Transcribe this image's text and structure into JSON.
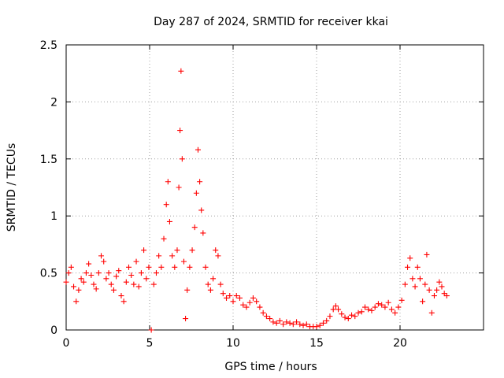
{
  "chart_data": {
    "type": "scatter",
    "title": "Day 287 of 2024, SRMTID for receiver kkai",
    "xlabel": "GPS time / hours",
    "ylabel": "SRMTID / TECUs",
    "xlim": [
      0,
      25
    ],
    "ylim": [
      0,
      2.5
    ],
    "xticks": [
      0,
      5,
      10,
      15,
      20
    ],
    "xtick_labels": [
      "0",
      "5",
      "10",
      "15",
      "20"
    ],
    "yticks": [
      0,
      0.5,
      1,
      1.5,
      2,
      2.5
    ],
    "ytick_labels": [
      "0",
      "0.5",
      "1",
      "1.5",
      "2",
      "2.5"
    ],
    "grid": true,
    "marker": "plus",
    "color": "#ff0000",
    "series": [
      {
        "name": "SRMTID",
        "points": [
          [
            0.0,
            0.42
          ],
          [
            0.15,
            0.5
          ],
          [
            0.3,
            0.55
          ],
          [
            0.45,
            0.38
          ],
          [
            0.6,
            0.25
          ],
          [
            0.75,
            0.35
          ],
          [
            0.9,
            0.45
          ],
          [
            1.05,
            0.42
          ],
          [
            1.2,
            0.5
          ],
          [
            1.35,
            0.58
          ],
          [
            1.5,
            0.48
          ],
          [
            1.65,
            0.4
          ],
          [
            1.8,
            0.36
          ],
          [
            1.95,
            0.5
          ],
          [
            2.1,
            0.65
          ],
          [
            2.25,
            0.6
          ],
          [
            2.4,
            0.45
          ],
          [
            2.55,
            0.5
          ],
          [
            2.7,
            0.4
          ],
          [
            2.85,
            0.35
          ],
          [
            3.0,
            0.47
          ],
          [
            3.15,
            0.52
          ],
          [
            3.3,
            0.3
          ],
          [
            3.45,
            0.25
          ],
          [
            3.6,
            0.42
          ],
          [
            3.75,
            0.55
          ],
          [
            3.9,
            0.48
          ],
          [
            4.05,
            0.4
          ],
          [
            4.2,
            0.6
          ],
          [
            4.35,
            0.38
          ],
          [
            4.5,
            0.5
          ],
          [
            4.65,
            0.7
          ],
          [
            4.8,
            0.45
          ],
          [
            4.95,
            0.55
          ],
          [
            5.1,
            0.0
          ],
          [
            5.25,
            0.4
          ],
          [
            5.4,
            0.5
          ],
          [
            5.55,
            0.65
          ],
          [
            5.7,
            0.55
          ],
          [
            5.85,
            0.8
          ],
          [
            6.0,
            1.1
          ],
          [
            6.1,
            1.3
          ],
          [
            6.2,
            0.95
          ],
          [
            6.35,
            0.65
          ],
          [
            6.5,
            0.55
          ],
          [
            6.65,
            0.7
          ],
          [
            6.75,
            1.25
          ],
          [
            6.82,
            1.75
          ],
          [
            6.88,
            2.27
          ],
          [
            6.95,
            1.5
          ],
          [
            7.05,
            0.6
          ],
          [
            7.15,
            0.1
          ],
          [
            7.25,
            0.35
          ],
          [
            7.4,
            0.55
          ],
          [
            7.55,
            0.7
          ],
          [
            7.7,
            0.9
          ],
          [
            7.8,
            1.2
          ],
          [
            7.9,
            1.58
          ],
          [
            8.0,
            1.3
          ],
          [
            8.1,
            1.05
          ],
          [
            8.2,
            0.85
          ],
          [
            8.35,
            0.55
          ],
          [
            8.5,
            0.4
          ],
          [
            8.65,
            0.35
          ],
          [
            8.8,
            0.45
          ],
          [
            8.95,
            0.7
          ],
          [
            9.1,
            0.65
          ],
          [
            9.25,
            0.4
          ],
          [
            9.4,
            0.32
          ],
          [
            9.6,
            0.28
          ],
          [
            9.8,
            0.3
          ],
          [
            10.0,
            0.25
          ],
          [
            10.2,
            0.3
          ],
          [
            10.4,
            0.28
          ],
          [
            10.6,
            0.22
          ],
          [
            10.8,
            0.2
          ],
          [
            11.0,
            0.24
          ],
          [
            11.2,
            0.28
          ],
          [
            11.4,
            0.25
          ],
          [
            11.6,
            0.2
          ],
          [
            11.8,
            0.15
          ],
          [
            12.0,
            0.12
          ],
          [
            12.2,
            0.1
          ],
          [
            12.4,
            0.07
          ],
          [
            12.6,
            0.06
          ],
          [
            12.8,
            0.08
          ],
          [
            13.0,
            0.05
          ],
          [
            13.2,
            0.07
          ],
          [
            13.4,
            0.06
          ],
          [
            13.6,
            0.05
          ],
          [
            13.8,
            0.07
          ],
          [
            14.0,
            0.05
          ],
          [
            14.2,
            0.04
          ],
          [
            14.4,
            0.05
          ],
          [
            14.6,
            0.03
          ],
          [
            14.8,
            0.03
          ],
          [
            15.0,
            0.03
          ],
          [
            15.2,
            0.04
          ],
          [
            15.4,
            0.06
          ],
          [
            15.6,
            0.08
          ],
          [
            15.8,
            0.12
          ],
          [
            16.0,
            0.18
          ],
          [
            16.15,
            0.21
          ],
          [
            16.3,
            0.18
          ],
          [
            16.5,
            0.14
          ],
          [
            16.7,
            0.11
          ],
          [
            16.9,
            0.1
          ],
          [
            17.1,
            0.13
          ],
          [
            17.3,
            0.12
          ],
          [
            17.5,
            0.15
          ],
          [
            17.7,
            0.16
          ],
          [
            17.9,
            0.2
          ],
          [
            18.1,
            0.18
          ],
          [
            18.3,
            0.17
          ],
          [
            18.5,
            0.2
          ],
          [
            18.7,
            0.23
          ],
          [
            18.9,
            0.22
          ],
          [
            19.1,
            0.2
          ],
          [
            19.3,
            0.24
          ],
          [
            19.5,
            0.18
          ],
          [
            19.7,
            0.15
          ],
          [
            19.9,
            0.2
          ],
          [
            20.1,
            0.26
          ],
          [
            20.3,
            0.4
          ],
          [
            20.45,
            0.55
          ],
          [
            20.6,
            0.63
          ],
          [
            20.75,
            0.45
          ],
          [
            20.9,
            0.38
          ],
          [
            21.05,
            0.55
          ],
          [
            21.2,
            0.45
          ],
          [
            21.35,
            0.25
          ],
          [
            21.5,
            0.4
          ],
          [
            21.6,
            0.66
          ],
          [
            21.75,
            0.35
          ],
          [
            21.9,
            0.15
          ],
          [
            22.05,
            0.3
          ],
          [
            22.2,
            0.35
          ],
          [
            22.35,
            0.42
          ],
          [
            22.5,
            0.38
          ],
          [
            22.65,
            0.32
          ],
          [
            22.8,
            0.3
          ]
        ]
      }
    ]
  }
}
